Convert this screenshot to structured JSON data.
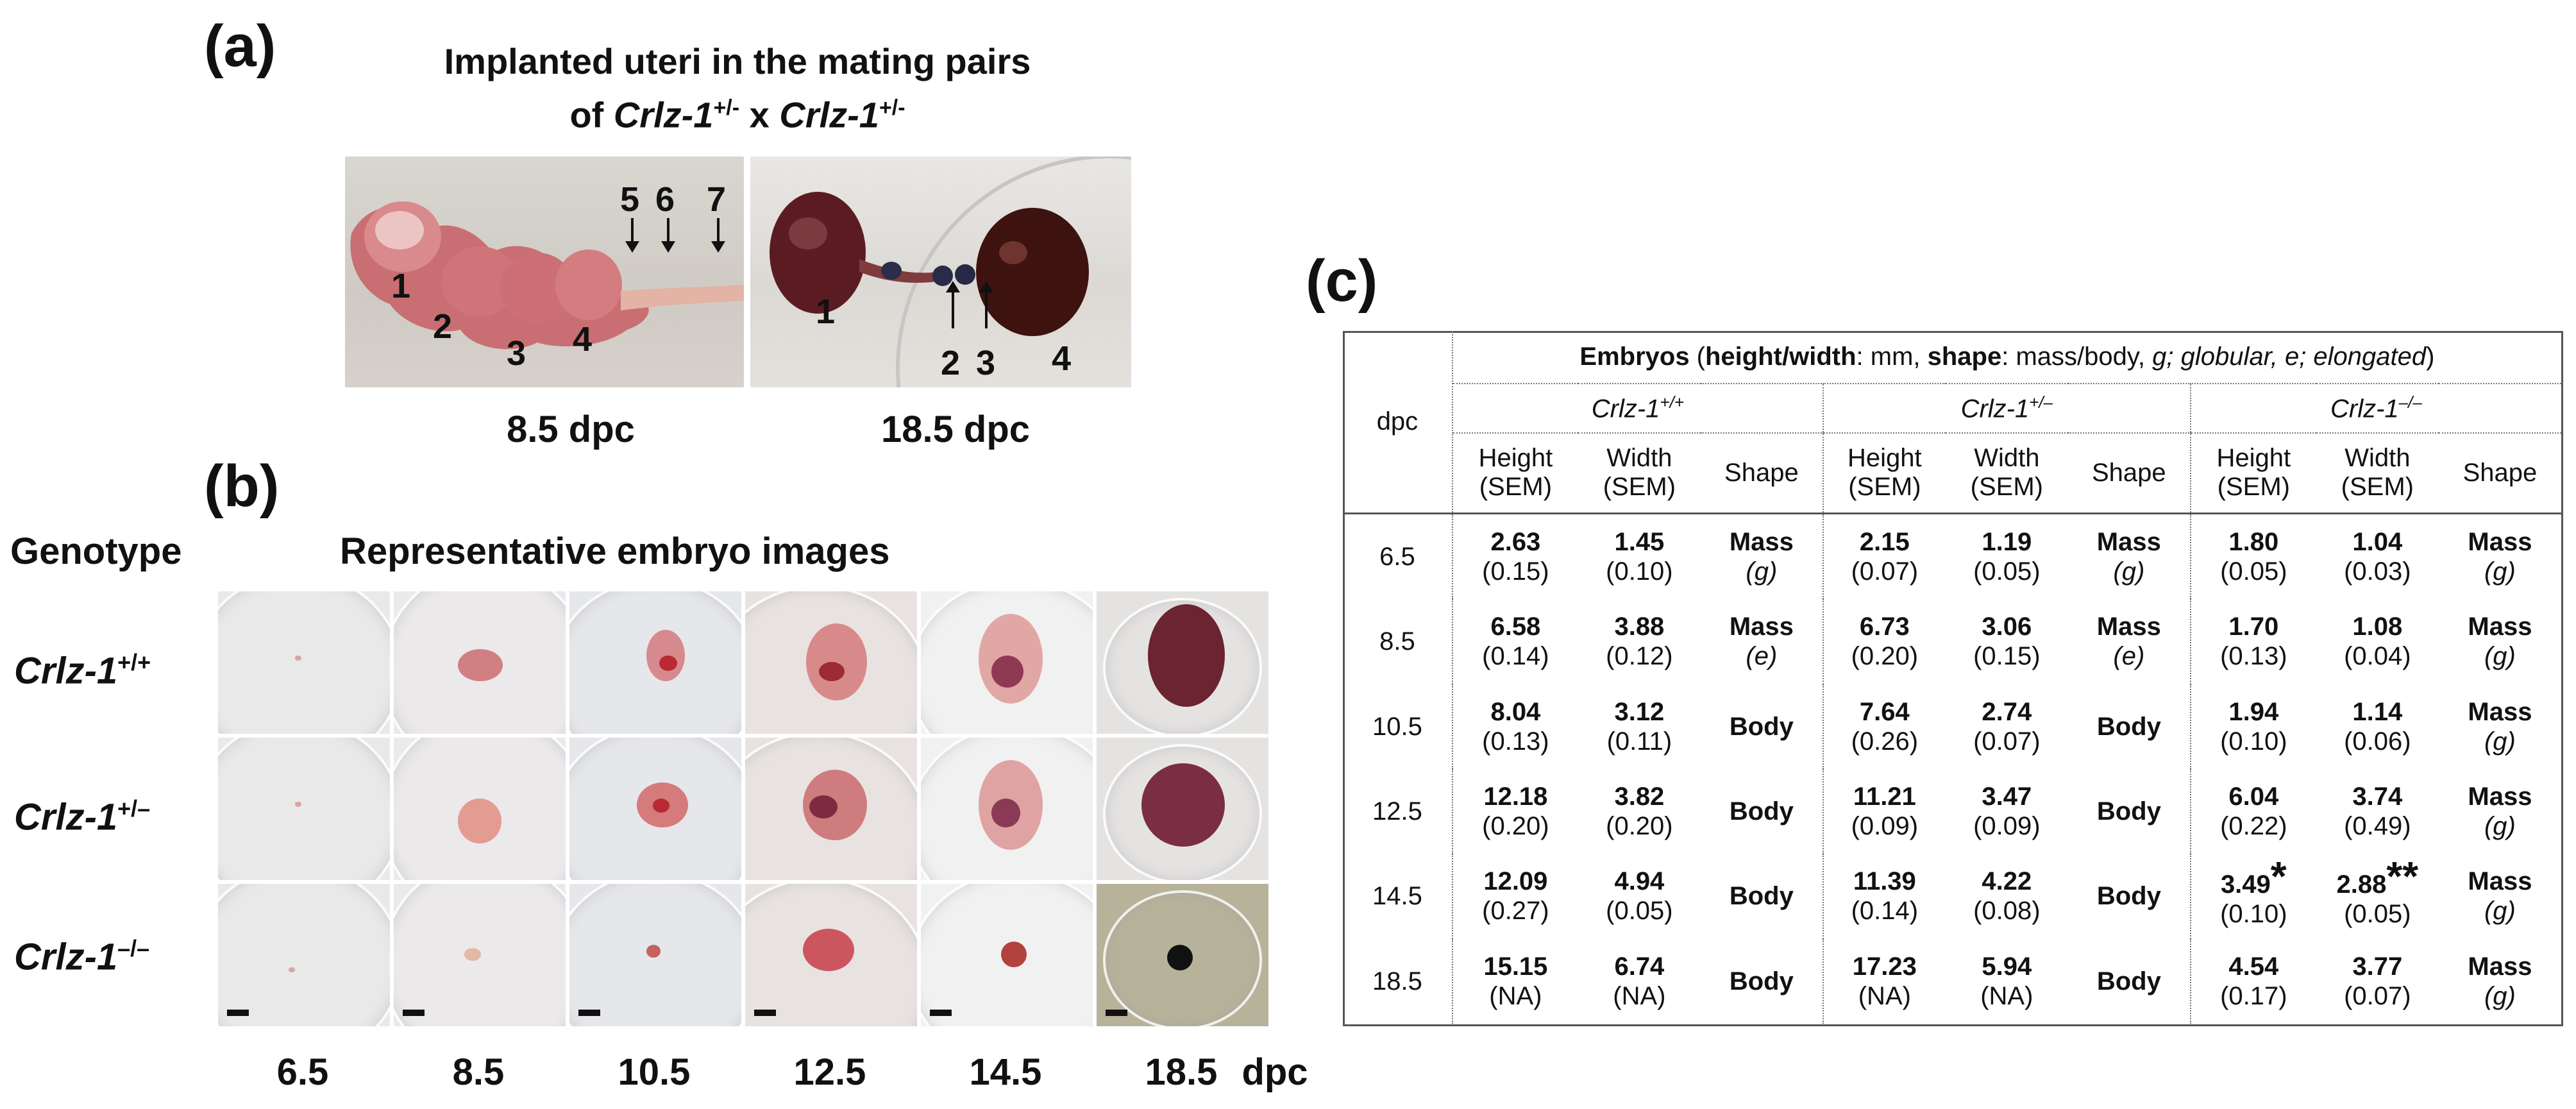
{
  "panel_a": {
    "label": "(a)",
    "title_line1": "Implanted uteri in the mating pairs",
    "title_line2_prefix": "of ",
    "title_gene1": "Crlz-1",
    "title_sup1": "+/-",
    "title_x": " x ",
    "title_gene2": "Crlz-1",
    "title_sup2": "+/-",
    "left_caption": "8.5 dpc",
    "right_caption": "18.5 dpc",
    "left_numbers": [
      "1",
      "2",
      "3",
      "4",
      "5",
      "6",
      "7"
    ],
    "right_numbers": [
      "1",
      "2",
      "3",
      "4"
    ]
  },
  "panel_b": {
    "label": "(b)",
    "genotype_header": "Genotype",
    "images_header": "Representative embryo images",
    "gene": "Crlz-1",
    "rows": [
      {
        "sup": "+/+"
      },
      {
        "sup": "+/–"
      },
      {
        "sup": "–/–"
      }
    ],
    "dpc_values": [
      "6.5",
      "8.5",
      "10.5",
      "12.5",
      "14.5",
      "18.5"
    ],
    "dpc_unit": "dpc"
  },
  "panel_c": {
    "label": "(c)",
    "header": {
      "embryos_bold": "Embryos",
      "paren_open": " (",
      "hw_bold": "height/width",
      "hw_text": ": mm, ",
      "shape_bold": "shape",
      "shape_text": ": mass/body, ",
      "g_text": "g; globular, e; elongated",
      "paren_close": ")"
    },
    "dpc_header": "dpc",
    "gene": "Crlz-1",
    "genotypes": [
      "+/+",
      "+/–",
      "–/–"
    ],
    "col_height": "Height",
    "col_width": "Width",
    "col_sem": "(SEM)",
    "col_shape": "Shape",
    "rows": [
      {
        "dpc": "6.5",
        "cells": [
          {
            "h": "2.63",
            "hs": "(0.15)",
            "w": "1.45",
            "ws": "(0.10)",
            "shape": "Mass",
            "sub": "(g)"
          },
          {
            "h": "2.15",
            "hs": "(0.07)",
            "w": "1.19",
            "ws": "(0.05)",
            "shape": "Mass",
            "sub": "(g)"
          },
          {
            "h": "1.80",
            "hs": "(0.05)",
            "w": "1.04",
            "ws": "(0.03)",
            "shape": "Mass",
            "sub": "(g)"
          }
        ]
      },
      {
        "dpc": "8.5",
        "cells": [
          {
            "h": "6.58",
            "hs": "(0.14)",
            "w": "3.88",
            "ws": "(0.12)",
            "shape": "Mass",
            "sub": "(e)"
          },
          {
            "h": "6.73",
            "hs": "(0.20)",
            "w": "3.06",
            "ws": "(0.15)",
            "shape": "Mass",
            "sub": "(e)"
          },
          {
            "h": "1.70",
            "hs": "(0.13)",
            "w": "1.08",
            "ws": "(0.04)",
            "shape": "Mass",
            "sub": "(g)"
          }
        ]
      },
      {
        "dpc": "10.5",
        "cells": [
          {
            "h": "8.04",
            "hs": "(0.13)",
            "w": "3.12",
            "ws": "(0.11)",
            "shape": "Body",
            "sub": ""
          },
          {
            "h": "7.64",
            "hs": "(0.26)",
            "w": "2.74",
            "ws": "(0.07)",
            "shape": "Body",
            "sub": ""
          },
          {
            "h": "1.94",
            "hs": "(0.10)",
            "w": "1.14",
            "ws": "(0.06)",
            "shape": "Mass",
            "sub": "(g)"
          }
        ]
      },
      {
        "dpc": "12.5",
        "cells": [
          {
            "h": "12.18",
            "hs": "(0.20)",
            "w": "3.82",
            "ws": "(0.20)",
            "shape": "Body",
            "sub": ""
          },
          {
            "h": "11.21",
            "hs": "(0.09)",
            "w": "3.47",
            "ws": "(0.09)",
            "shape": "Body",
            "sub": ""
          },
          {
            "h": "6.04",
            "hs": "(0.22)",
            "w": "3.74",
            "ws": "(0.49)",
            "shape": "Mass",
            "sub": "(g)"
          }
        ]
      },
      {
        "dpc": "14.5",
        "cells": [
          {
            "h": "12.09",
            "hs": "(0.27)",
            "w": "4.94",
            "ws": "(0.05)",
            "shape": "Body",
            "sub": ""
          },
          {
            "h": "11.39",
            "hs": "(0.14)",
            "w": "4.22",
            "ws": "(0.08)",
            "shape": "Body",
            "sub": ""
          },
          {
            "h": "3.49",
            "hstar": "*",
            "hs": "(0.10)",
            "w": "2.88",
            "wstar": "**",
            "ws": "(0.05)",
            "shape": "Mass",
            "sub": "(g)"
          }
        ]
      },
      {
        "dpc": "18.5",
        "cells": [
          {
            "h": "15.15",
            "hs": "(NA)",
            "w": "6.74",
            "ws": "(NA)",
            "shape": "Body",
            "sub": ""
          },
          {
            "h": "17.23",
            "hs": "(NA)",
            "w": "5.94",
            "ws": "(NA)",
            "shape": "Body",
            "sub": ""
          },
          {
            "h": "4.54",
            "hs": "(0.17)",
            "w": "3.77",
            "ws": "(0.07)",
            "shape": "Mass",
            "sub": "(g)"
          }
        ]
      }
    ]
  }
}
